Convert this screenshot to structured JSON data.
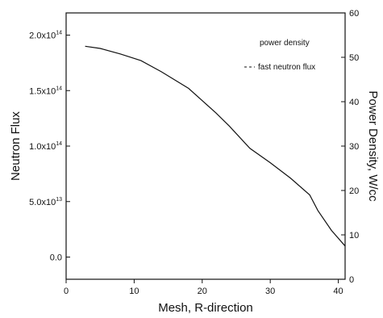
{
  "chart_data": {
    "type": "line",
    "xlabel": "Mesh, R-direction",
    "ylabel_left": "Neutron Flux",
    "ylabel_right": "Power Density, W/cc",
    "xlim": [
      0,
      41
    ],
    "ylim_left": [
      -20000000000000.0,
      220000000000000.0
    ],
    "ylim_right": [
      0,
      60
    ],
    "x_ticks": [
      {
        "value": 0,
        "label": "0"
      },
      {
        "value": 10,
        "label": "10"
      },
      {
        "value": 20,
        "label": "20"
      },
      {
        "value": 30,
        "label": "30"
      },
      {
        "value": 40,
        "label": "40"
      }
    ],
    "y_left_ticks": [
      {
        "value": 0,
        "label": "0.0",
        "base": "0.0",
        "exp": ""
      },
      {
        "value": 50000000000000.0,
        "label": "5.0x10^13",
        "base": "5.0x10",
        "exp": "13"
      },
      {
        "value": 100000000000000.0,
        "label": "1.0x10^14",
        "base": "1.0x10",
        "exp": "14"
      },
      {
        "value": 150000000000000.0,
        "label": "1.5x10^14",
        "base": "1.5x10",
        "exp": "14"
      },
      {
        "value": 200000000000000.0,
        "label": "2.0x10^14",
        "base": "2.0x10",
        "exp": "14"
      }
    ],
    "y_right_ticks": [
      {
        "value": 0,
        "label": "0"
      },
      {
        "value": 10,
        "label": "10"
      },
      {
        "value": 20,
        "label": "20"
      },
      {
        "value": 30,
        "label": "30"
      },
      {
        "value": 40,
        "label": "40"
      },
      {
        "value": 50,
        "label": "50"
      },
      {
        "value": 60,
        "label": "60"
      }
    ],
    "legend": {
      "placement": "top-right",
      "entries": [
        {
          "label": "power density",
          "style": "none"
        },
        {
          "label": "fast neutron flux",
          "style": "dashed"
        }
      ]
    },
    "series": [
      {
        "axis": "left",
        "line_style": "solid",
        "color": "#111111",
        "points": [
          [
            2.8,
            190000000000000.0
          ],
          [
            5,
            188000000000000.0
          ],
          [
            8,
            183000000000000.0
          ],
          [
            11,
            177000000000000.0
          ],
          [
            14,
            167000000000000.0
          ],
          [
            18,
            152000000000000.0
          ],
          [
            22,
            130000000000000.0
          ],
          [
            24,
            118000000000000.0
          ],
          [
            27,
            98000000000000.0
          ],
          [
            30,
            85000000000000.0
          ],
          [
            33,
            71000000000000.0
          ],
          [
            35.8,
            56000000000000.0
          ],
          [
            37,
            42000000000000.0
          ],
          [
            39,
            24000000000000.0
          ],
          [
            41,
            10000000000000.0
          ]
        ]
      }
    ]
  }
}
